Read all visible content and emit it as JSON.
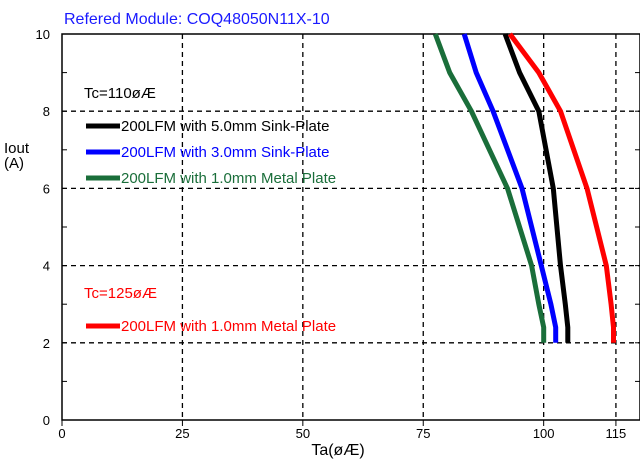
{
  "chart_data": {
    "type": "line",
    "title": "Refered Module: COQ48050N11X-10",
    "xlabel": "Ta(øÆ)",
    "ylabel": "Iout",
    "ylabel_unit": "(A)",
    "xlim": [
      0,
      120
    ],
    "ylim": [
      0,
      10
    ],
    "x_ticks": [
      0,
      25,
      50,
      75,
      100,
      115
    ],
    "y_ticks": [
      0,
      2,
      4,
      6,
      8,
      10
    ],
    "grid": true,
    "legend_groups": [
      {
        "header": "Tc=110øÆ",
        "series_index": [
          0,
          1,
          2
        ]
      },
      {
        "header": "Tc=125øÆ",
        "series_index": [
          3
        ]
      }
    ],
    "series": [
      {
        "name": "200LFM with 5.0mm Sink-Plate",
        "color": "#000000",
        "x": [
          92,
          95,
          99,
          102,
          103.5,
          104.5,
          105,
          105
        ],
        "y": [
          10,
          9,
          8,
          6,
          4,
          3,
          2.4,
          2
        ]
      },
      {
        "name": "200LFM with 3.0mm Sink-Plate",
        "color": "#0000ff",
        "x": [
          83.5,
          86,
          89.5,
          95.5,
          99.5,
          101.5,
          102.5,
          102.5
        ],
        "y": [
          10,
          9,
          8,
          6,
          4,
          3,
          2.4,
          2
        ]
      },
      {
        "name": "200LFM with 1.0mm Metal Plate",
        "color": "#1a6e3a",
        "x": [
          77.5,
          80.5,
          85,
          92.5,
          97.5,
          99,
          100,
          100
        ],
        "y": [
          10,
          9,
          8,
          6,
          4,
          3,
          2.4,
          2
        ]
      },
      {
        "name": "200LFM with 1.0mm Metal Plate",
        "color": "#ff0000",
        "x": [
          93,
          99,
          103.5,
          109,
          113,
          114,
          114.5,
          114.5
        ],
        "y": [
          10,
          9,
          8,
          6,
          4,
          3,
          2.4,
          2
        ]
      }
    ]
  }
}
